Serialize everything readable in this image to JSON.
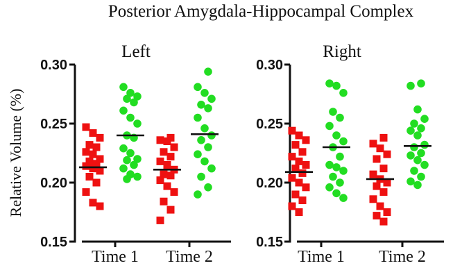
{
  "figure_title": "Posterior Amygdala-Hippocampal Complex",
  "chart_data": [
    {
      "type": "scatter",
      "title": "Left",
      "ylabel": "Relative Volume (%)",
      "ylim": [
        0.15,
        0.3
      ],
      "yticks": [
        "0.30",
        "0.25",
        "0.20",
        "0.15"
      ],
      "categories": [
        "Time 1",
        "Time 2"
      ],
      "series": [
        {
          "color": "#ee1111",
          "marker": "square",
          "groups": [
            {
              "values": [
                0.247,
                0.242,
                0.238,
                0.232,
                0.23,
                0.226,
                0.224,
                0.22,
                0.218,
                0.216,
                0.214,
                0.212,
                0.21,
                0.205,
                0.2,
                0.192,
                0.183,
                0.18
              ],
              "mean": 0.213
            },
            {
              "values": [
                0.238,
                0.236,
                0.235,
                0.23,
                0.226,
                0.222,
                0.218,
                0.215,
                0.211,
                0.207,
                0.206,
                0.202,
                0.197,
                0.192,
                0.184,
                0.177,
                0.168
              ],
              "mean": 0.211
            }
          ]
        },
        {
          "color": "#22dd22",
          "marker": "circle",
          "groups": [
            {
              "values": [
                0.281,
                0.276,
                0.273,
                0.271,
                0.268,
                0.261,
                0.255,
                0.25,
                0.24,
                0.238,
                0.229,
                0.225,
                0.22,
                0.219,
                0.215,
                0.212,
                0.207,
                0.205,
                0.203
              ],
              "mean": 0.24
            },
            {
              "values": [
                0.294,
                0.281,
                0.276,
                0.271,
                0.266,
                0.263,
                0.255,
                0.246,
                0.24,
                0.236,
                0.23,
                0.224,
                0.218,
                0.212,
                0.205,
                0.196,
                0.19
              ],
              "mean": 0.241
            }
          ]
        }
      ]
    },
    {
      "type": "scatter",
      "title": "Right",
      "ylabel": "",
      "ylim": [
        0.15,
        0.3
      ],
      "yticks": [
        "0.30",
        "0.25",
        "0.20",
        "0.15"
      ],
      "categories": [
        "Time 1",
        "Time 2"
      ],
      "series": [
        {
          "color": "#ee1111",
          "marker": "square",
          "groups": [
            {
              "values": [
                0.244,
                0.24,
                0.236,
                0.232,
                0.226,
                0.222,
                0.218,
                0.215,
                0.212,
                0.208,
                0.204,
                0.2,
                0.196,
                0.19,
                0.185,
                0.18,
                0.175
              ],
              "mean": 0.209
            },
            {
              "values": [
                0.238,
                0.233,
                0.229,
                0.224,
                0.22,
                0.212,
                0.207,
                0.203,
                0.2,
                0.197,
                0.192,
                0.186,
                0.18,
                0.175,
                0.172,
                0.167
              ],
              "mean": 0.203
            }
          ]
        },
        {
          "color": "#22dd22",
          "marker": "circle",
          "groups": [
            {
              "values": [
                0.284,
                0.282,
                0.276,
                0.26,
                0.255,
                0.248,
                0.24,
                0.235,
                0.23,
                0.222,
                0.215,
                0.213,
                0.21,
                0.205,
                0.2,
                0.196,
                0.191,
                0.187
              ],
              "mean": 0.23
            },
            {
              "values": [
                0.284,
                0.282,
                0.262,
                0.254,
                0.25,
                0.246,
                0.244,
                0.24,
                0.232,
                0.23,
                0.225,
                0.223,
                0.219,
                0.215,
                0.21,
                0.205,
                0.201,
                0.198
              ],
              "mean": 0.231
            }
          ]
        }
      ]
    }
  ]
}
